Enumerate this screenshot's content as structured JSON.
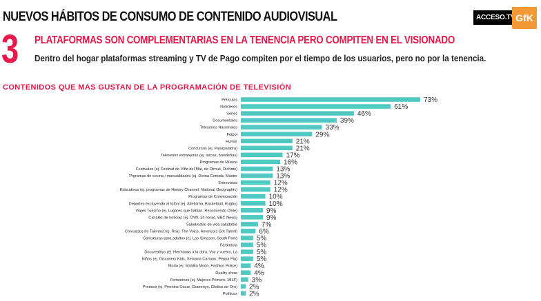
{
  "header": {
    "title": "NUEVOS HÁBITOS DE  CONSUMO DE CONTENIDO AUDIOVISUAL",
    "logo_acceso": "ACCESO.TV",
    "logo_gfk": "GfK"
  },
  "section": {
    "number": "3",
    "subtitle": "PLATAFORMAS SON COMPLEMENTARIAS EN LA TENENCIA PERO COMPITEN EN EL VISIONADO",
    "description": "Dentro del hogar plataformas streaming y TV de Pago compiten por el tiempo de los usuarios, pero no por la tenencia."
  },
  "colors": {
    "bar": "#4fc9c2",
    "accent": "#e5194a"
  },
  "chart_data": {
    "type": "bar",
    "orientation": "horizontal",
    "title": "CONTENIDOS QUE MAS GUSTAN DE LA PROGRAMACIÓN DE TELEVISIÓN",
    "unit": "%",
    "xlim": [
      0,
      75
    ],
    "categories": [
      "Películas",
      "Noticieros",
      "Series",
      "Documentales",
      "Teleseries Nacionales",
      "Fútbol",
      "Humor",
      "Concursos (ej. Pasapalabra)",
      "Teleseries extranjeras (ej. turcas, brasileñas)",
      "Programas de Música",
      "Festivales (ej. Festival de Viña del Mar, de Olmué, Dichato)",
      "Prgramas de cocina / manualidades (ej. Divina Comida, Master",
      "Entrevistas",
      "Educativos (ej. programas de History Channel, National Geographic)",
      "Programas de Conversación",
      "Deportes excluyendo al fútbol (ej. Atletismo, Basketball, Rugby)",
      "Viajes Turismo (ej. Lugares que hablan, Recomiendo Chile)",
      "Canales de noticias (ej. CNN, 24 horas, BBC News)",
      "Salud/estilo de vida saludable",
      "Concursos de Talentos (ej. Rojo, The Voice, America's Got Talent)",
      "Caricaturas para adultos (ej. Los Simpson, South Park)",
      "Farándula",
      "Docurealitys (ej. Hermanos a la obra, Voy y vuelvo, La",
      "Niños (ej. Discovery Kids, Semana Cartoon, Peppa Pig)",
      "Moda (ej. Maldita Moda, Fashion Police)",
      "Reality show",
      "Femeninos (ej. Mujeres Primero, MILF)",
      "Premios (ej. Premios Oscar, Grammye, Globos de Oro)",
      "Políticos"
    ],
    "values": [
      73,
      61,
      46,
      39,
      33,
      29,
      21,
      21,
      17,
      16,
      13,
      13,
      12,
      12,
      10,
      10,
      9,
      9,
      7,
      6,
      5,
      5,
      5,
      5,
      4,
      4,
      3,
      2,
      2
    ]
  }
}
